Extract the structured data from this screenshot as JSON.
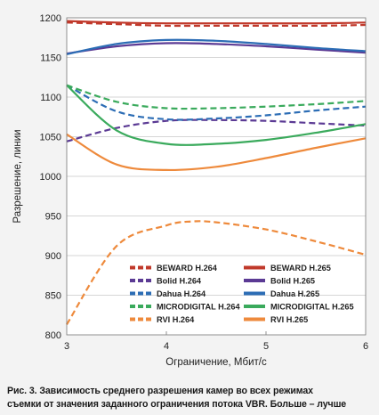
{
  "chart_data": {
    "type": "line",
    "xlabel": "Ограничение, Мбит/с",
    "ylabel": "Разрешение, линии",
    "xlim": [
      3,
      6
    ],
    "ylim": [
      800,
      1200
    ],
    "xticks": [
      "3",
      "4",
      "5",
      "6"
    ],
    "yticks": [
      "800",
      "850",
      "900",
      "950",
      "1000",
      "1050",
      "1100",
      "1150",
      "1200"
    ],
    "grid": "horizontal",
    "legend_position": "lower-inside",
    "series": [
      {
        "name": "BEWARD H.264",
        "color": "#c0392b",
        "dash": true,
        "x": [
          3,
          3.5,
          4,
          4.5,
          5,
          5.5,
          6
        ],
        "y": [
          1194,
          1192,
          1190,
          1190,
          1190,
          1190,
          1191
        ]
      },
      {
        "name": "BEWARD H.265",
        "color": "#c0392b",
        "dash": false,
        "x": [
          3,
          3.5,
          4,
          4.5,
          5,
          5.5,
          6
        ],
        "y": [
          1196,
          1194,
          1193,
          1193,
          1193,
          1193,
          1194
        ]
      },
      {
        "name": "Bolid H.264",
        "color": "#5b3a94",
        "dash": true,
        "x": [
          3,
          3.5,
          4,
          4.5,
          5,
          5.5,
          6
        ],
        "y": [
          1044,
          1061,
          1070,
          1071,
          1070,
          1067,
          1064
        ]
      },
      {
        "name": "Bolid H.265",
        "color": "#5b3a94",
        "dash": false,
        "x": [
          3,
          3.5,
          4,
          4.5,
          5,
          5.5,
          6
        ],
        "y": [
          1155,
          1164,
          1168,
          1167,
          1164,
          1160,
          1156
        ]
      },
      {
        "name": "Dahua H.264",
        "color": "#2c6db5",
        "dash": true,
        "x": [
          3,
          3.5,
          4,
          4.5,
          5,
          5.5,
          6
        ],
        "y": [
          1115,
          1082,
          1072,
          1073,
          1077,
          1083,
          1088
        ]
      },
      {
        "name": "Dahua H.265",
        "color": "#2c6db5",
        "dash": false,
        "x": [
          3,
          3.5,
          4,
          4.5,
          5,
          5.5,
          6
        ],
        "y": [
          1154,
          1167,
          1172,
          1171,
          1167,
          1162,
          1158
        ]
      },
      {
        "name": "MICRODIGITAL H.264",
        "color": "#3aaa5c",
        "dash": true,
        "x": [
          3,
          3.5,
          4,
          4.5,
          5,
          5.5,
          6
        ],
        "y": [
          1115,
          1094,
          1086,
          1086,
          1088,
          1091,
          1095
        ]
      },
      {
        "name": "MICRODIGITAL H.265",
        "color": "#3aaa5c",
        "dash": false,
        "x": [
          3,
          3.5,
          4,
          4.5,
          5,
          5.5,
          6
        ],
        "y": [
          1115,
          1058,
          1041,
          1041,
          1046,
          1055,
          1066
        ]
      },
      {
        "name": "RVI H.264",
        "color": "#ee8a3c",
        "dash": true,
        "x": [
          3,
          3.5,
          4,
          4.25,
          4.5,
          5,
          5.5,
          6
        ],
        "y": [
          813,
          912,
          938,
          943,
          942,
          933,
          918,
          901
        ]
      },
      {
        "name": "RVI H.265",
        "color": "#ee8a3c",
        "dash": false,
        "x": [
          3,
          3.5,
          4,
          4.5,
          5,
          5.5,
          6
        ],
        "y": [
          1053,
          1015,
          1008,
          1012,
          1023,
          1036,
          1048
        ]
      }
    ],
    "caption_lines": [
      "Рис. 3. Зависимость среднего разрешения камер во всех режимах",
      "съемки от значения заданного ограничения потока VBR. Больше – лучше"
    ]
  }
}
